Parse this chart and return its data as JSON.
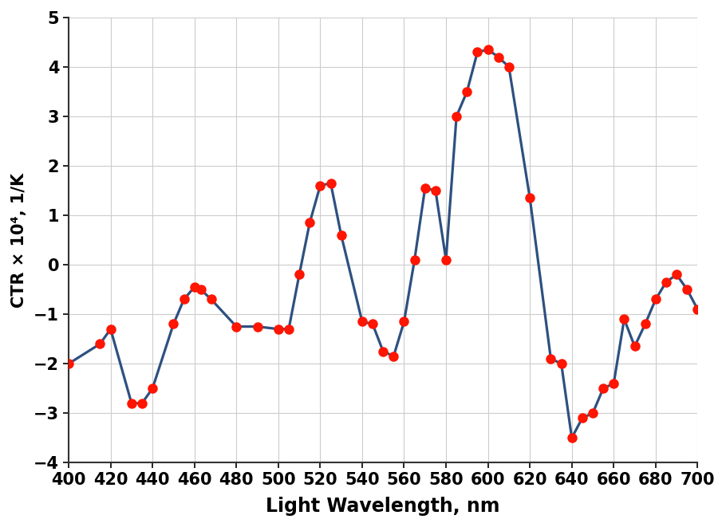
{
  "x": [
    400,
    415,
    420,
    430,
    435,
    440,
    450,
    455,
    460,
    463,
    468,
    480,
    490,
    500,
    505,
    510,
    515,
    520,
    525,
    530,
    540,
    545,
    550,
    555,
    560,
    565,
    570,
    575,
    580,
    585,
    590,
    595,
    600,
    605,
    610,
    620,
    630,
    635,
    640,
    645,
    650,
    655,
    660,
    665,
    670,
    675,
    680,
    685,
    690,
    695,
    700
  ],
  "y": [
    -2.0,
    -1.6,
    -1.3,
    -2.8,
    -2.8,
    -2.5,
    -1.2,
    -0.7,
    -0.45,
    -0.5,
    -0.7,
    -1.25,
    -1.25,
    -1.3,
    -1.3,
    -0.2,
    0.85,
    1.6,
    1.65,
    0.6,
    -1.15,
    -1.2,
    -1.75,
    -1.85,
    -1.15,
    0.1,
    1.55,
    1.5,
    0.1,
    3.0,
    3.5,
    4.3,
    4.35,
    4.2,
    4.0,
    1.35,
    -1.9,
    -2.0,
    -3.5,
    -3.1,
    -3.0,
    -2.5,
    -2.4,
    -1.1,
    -1.65,
    -1.2,
    -0.7,
    -0.35,
    -0.2,
    -0.5,
    -0.9
  ],
  "line_color": "#2E5080",
  "marker_color": "#FF1500",
  "marker_size": 9,
  "line_width": 2.3,
  "xlabel": "Light Wavelength, nm",
  "ylabel": "CTR × 10⁴, 1/K",
  "xlim": [
    400,
    700
  ],
  "ylim": [
    -4,
    5
  ],
  "xticks": [
    400,
    420,
    440,
    460,
    480,
    500,
    520,
    540,
    560,
    580,
    600,
    620,
    640,
    660,
    680,
    700
  ],
  "yticks": [
    -4,
    -3,
    -2,
    -1,
    0,
    1,
    2,
    3,
    4,
    5
  ],
  "grid_color": "#CCCCCC",
  "background_color": "#FFFFFF",
  "xlabel_fontsize": 17,
  "ylabel_fontsize": 15,
  "tick_fontsize": 15
}
